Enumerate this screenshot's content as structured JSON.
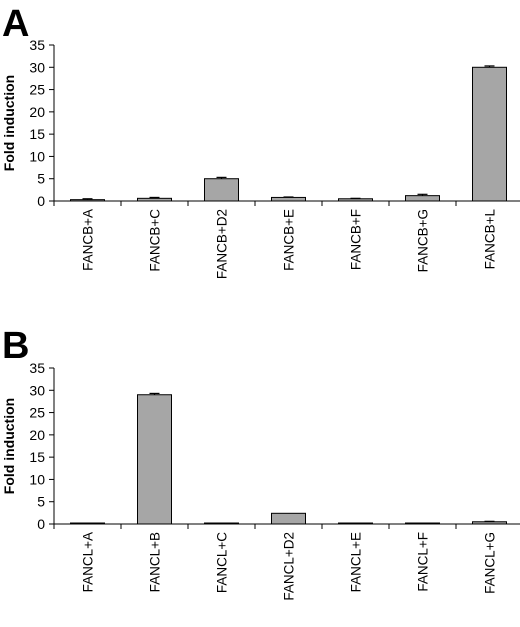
{
  "chart_data": [
    {
      "type": "bar",
      "panel": "A",
      "ylabel": "Fold induction",
      "ylim": [
        0,
        35
      ],
      "yticks": [
        0,
        5,
        10,
        15,
        20,
        25,
        30,
        35
      ],
      "categories": [
        "FANCB+A",
        "FANCB+C",
        "FANCB+D2",
        "FANCB+E",
        "FANCB+F",
        "FANCB+G",
        "FANCB+L"
      ],
      "values": [
        0.3,
        0.6,
        5.0,
        0.8,
        0.5,
        1.2,
        30.0
      ],
      "errors": [
        0.2,
        0.2,
        0.3,
        0.1,
        0.1,
        0.3,
        0.3
      ],
      "bar_color": "#a6a6a6",
      "grid": false
    },
    {
      "type": "bar",
      "panel": "B",
      "ylabel": "Fold induction",
      "ylim": [
        0,
        35
      ],
      "yticks": [
        0,
        5,
        10,
        15,
        20,
        25,
        30,
        35
      ],
      "categories": [
        "FANCL+A",
        "FANCL+B",
        "FANCL+C",
        "FANCL+D2",
        "FANCL+E",
        "FANCL+F",
        "FANCL+G"
      ],
      "values": [
        0.2,
        29.0,
        0.2,
        2.4,
        0.2,
        0.2,
        0.5
      ],
      "errors": [
        0,
        0.3,
        0,
        0,
        0,
        0,
        0.1
      ],
      "bar_color": "#a6a6a6",
      "grid": false
    }
  ]
}
